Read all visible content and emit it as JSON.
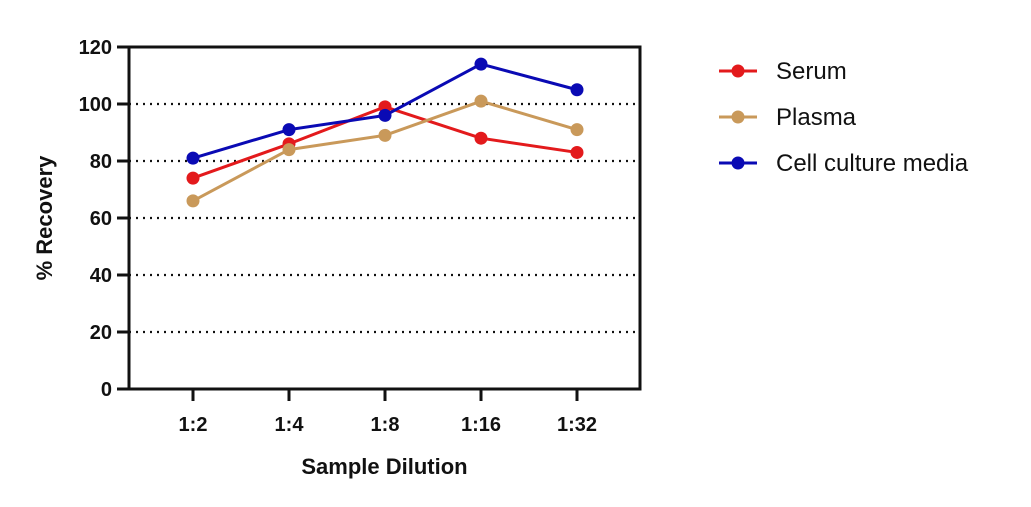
{
  "chart_data": {
    "type": "line",
    "categories": [
      "1:2",
      "1:4",
      "1:8",
      "1:16",
      "1:32"
    ],
    "series": [
      {
        "name": "Serum",
        "values": [
          74,
          86,
          99,
          88,
          83
        ],
        "color": "#e31a1c"
      },
      {
        "name": "Plasma",
        "values": [
          66,
          84,
          89,
          101,
          91
        ],
        "color": "#c9995a"
      },
      {
        "name": "Cell culture media",
        "values": [
          81,
          91,
          96,
          114,
          105
        ],
        "color": "#0a0ab4"
      }
    ],
    "xlabel": "Sample Dilution",
    "ylabel": "% Recovery",
    "ylim": [
      0,
      120
    ],
    "yticks": [
      0,
      20,
      40,
      60,
      80,
      100,
      120
    ],
    "gridlines": [
      20,
      40,
      60,
      80,
      100
    ],
    "grid_style": "dotted",
    "legend_position": "right"
  }
}
